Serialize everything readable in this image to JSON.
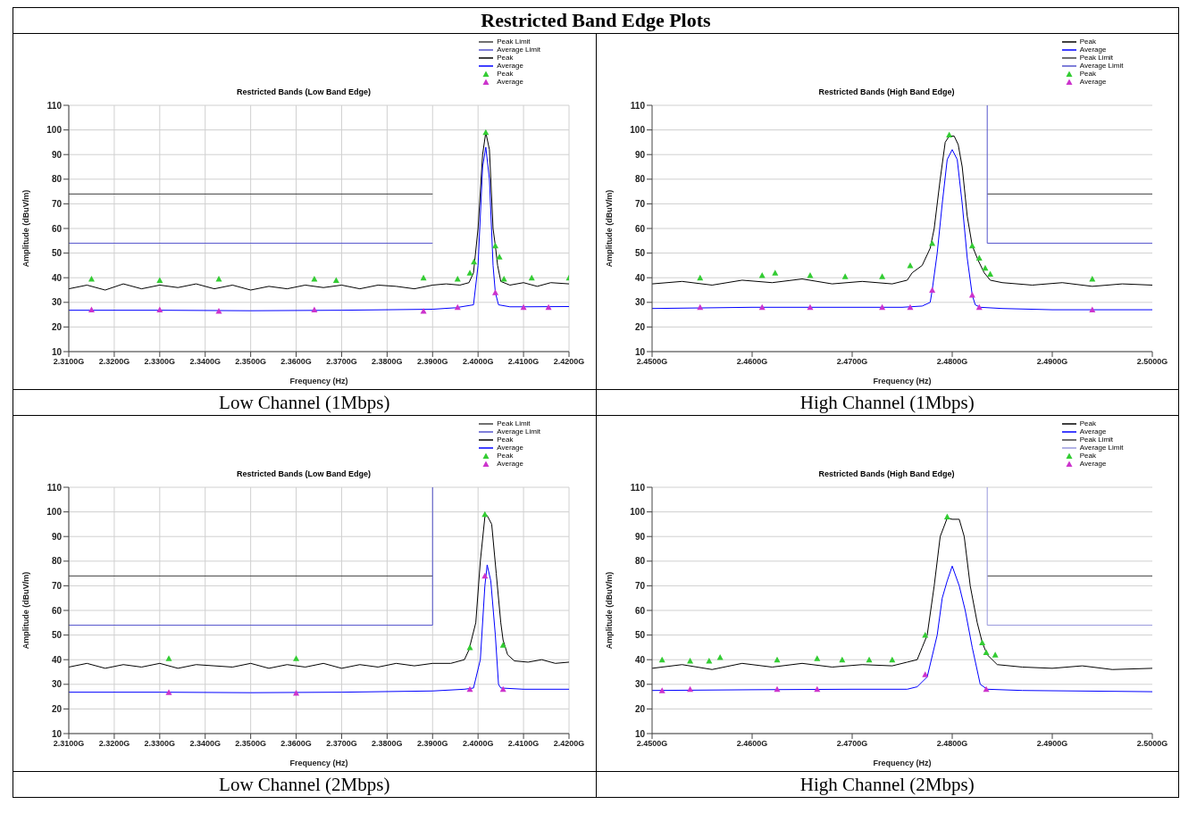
{
  "chart_data": [
    {
      "type": "line",
      "title": "Restricted Bands (Low Band Edge)",
      "xlabel": "Frequency (Hz)",
      "ylabel": "Amplitude (dBuV/m)",
      "annotations": [
        "Restricted Band Edge Plots",
        "Low Channel (1Mbps)"
      ],
      "grid": true,
      "legend": "top right",
      "xlim": [
        2.31,
        2.42
      ],
      "xticks": [
        {
          "value": 2.31,
          "label": "2.3100G"
        },
        {
          "value": 2.32,
          "label": "2.3200G"
        },
        {
          "value": 2.33,
          "label": "2.3300G"
        },
        {
          "value": 2.34,
          "label": "2.3400G"
        },
        {
          "value": 2.35,
          "label": "2.3500G"
        },
        {
          "value": 2.36,
          "label": "2.3600G"
        },
        {
          "value": 2.37,
          "label": "2.3700G"
        },
        {
          "value": 2.38,
          "label": "2.3800G"
        },
        {
          "value": 2.39,
          "label": "2.3900G"
        },
        {
          "value": 2.4,
          "label": "2.4000G"
        },
        {
          "value": 2.41,
          "label": "2.4100G"
        },
        {
          "value": 2.42,
          "label": "2.4200G"
        }
      ],
      "ylim": [
        10,
        110
      ],
      "yticks": [
        10,
        20,
        30,
        40,
        50,
        60,
        70,
        80,
        90,
        100,
        110
      ],
      "series": [
        {
          "name": "Peak Limit",
          "color": "#404040",
          "x": [
            2.31,
            2.39
          ],
          "values": [
            74,
            74
          ]
        },
        {
          "name": "Average Limit",
          "color": "#5555cc",
          "x": [
            2.31,
            2.39
          ],
          "values": [
            54,
            54
          ]
        },
        {
          "name": "Peak",
          "color": "#000000",
          "x": [
            2.31,
            2.314,
            2.318,
            2.322,
            2.326,
            2.33,
            2.334,
            2.338,
            2.342,
            2.346,
            2.35,
            2.354,
            2.358,
            2.362,
            2.366,
            2.37,
            2.374,
            2.378,
            2.382,
            2.386,
            2.39,
            2.393,
            2.396,
            2.398,
            2.399,
            2.4,
            2.401,
            2.4017,
            2.4025,
            2.4033,
            2.4038,
            2.4043,
            2.405,
            2.407,
            2.41,
            2.413,
            2.416,
            2.42
          ],
          "values": [
            35.5,
            37,
            35,
            37.5,
            35.5,
            37,
            36,
            37.5,
            35.5,
            37,
            35,
            36.5,
            35.5,
            37,
            36,
            37,
            35.5,
            37,
            36.5,
            35.5,
            37,
            37.5,
            37,
            38,
            42,
            60,
            90,
            99,
            92,
            60,
            53,
            45,
            38.5,
            37,
            38,
            36.5,
            38,
            37.5
          ]
        },
        {
          "name": "Average",
          "color": "#0000ff",
          "x": [
            2.31,
            2.33,
            2.35,
            2.37,
            2.39,
            2.395,
            2.399,
            2.4,
            2.401,
            2.4017,
            2.4025,
            2.4033,
            2.4038,
            2.4045,
            2.407,
            2.41,
            2.42
          ],
          "values": [
            26.8,
            26.8,
            26.6,
            26.8,
            27.2,
            27.8,
            29,
            45,
            85,
            93,
            80,
            45,
            34,
            29,
            28.2,
            28.2,
            28.3
          ]
        },
        {
          "name": "Peak",
          "type": "scatter",
          "marker": "triangle",
          "color": "#33cc33",
          "x": [
            2.315,
            2.33,
            2.343,
            2.364,
            2.3688,
            2.388,
            2.3955,
            2.3982,
            2.3991,
            2.4017,
            2.4038,
            2.4047,
            2.4057,
            2.4118,
            2.42
          ],
          "values": [
            39.5,
            39,
            39.5,
            39.5,
            39,
            40,
            39.5,
            42,
            46.5,
            99,
            53,
            48.5,
            39.5,
            40,
            40
          ]
        },
        {
          "name": "Average",
          "type": "scatter",
          "marker": "triangle",
          "color": "#cc33cc",
          "x": [
            2.315,
            2.33,
            2.343,
            2.364,
            2.388,
            2.3955,
            2.4038,
            2.41,
            2.4155
          ],
          "values": [
            27,
            27,
            26.5,
            27,
            26.5,
            28,
            34,
            28,
            28
          ]
        }
      ]
    },
    {
      "type": "line",
      "title": "Restricted Bands  (High Band Edge)",
      "xlabel": "Frequency (Hz)",
      "ylabel": "Amplitude (dBuV/m)",
      "annotations": [
        "High Channel (1Mbps)"
      ],
      "grid": "y",
      "legend": "top right",
      "xlim": [
        2.45,
        2.5
      ],
      "xticks": [
        {
          "value": 2.45,
          "label": "2.4500G"
        },
        {
          "value": 2.46,
          "label": "2.4600G"
        },
        {
          "value": 2.47,
          "label": "2.4700G"
        },
        {
          "value": 2.48,
          "label": "2.4800G"
        },
        {
          "value": 2.49,
          "label": "2.4900G"
        },
        {
          "value": 2.5,
          "label": "2.5000G"
        }
      ],
      "ylim": [
        10,
        110
      ],
      "yticks": [
        10,
        20,
        30,
        40,
        50,
        60,
        70,
        80,
        90,
        100,
        110
      ],
      "series": [
        {
          "name": "Peak",
          "color": "#000000",
          "x": [
            2.45,
            2.453,
            2.456,
            2.459,
            2.462,
            2.465,
            2.468,
            2.471,
            2.474,
            2.4755,
            2.476,
            2.477,
            2.4778,
            2.4782,
            2.4788,
            2.4793,
            2.4797,
            2.4802,
            2.4806,
            2.481,
            2.4815,
            2.482,
            2.4826,
            2.4832,
            2.4838,
            2.485,
            2.488,
            2.491,
            2.494,
            2.497,
            2.5
          ],
          "values": [
            37.5,
            38.5,
            37,
            39,
            38,
            39.5,
            37.5,
            38.5,
            37.5,
            39,
            42,
            45,
            52,
            60,
            80,
            95,
            97.5,
            97.5,
            94,
            85,
            65,
            53,
            47,
            42,
            39,
            38,
            37,
            38,
            36.5,
            37.5,
            37
          ]
        },
        {
          "name": "Average",
          "color": "#0000ff",
          "x": [
            2.45,
            2.46,
            2.47,
            2.475,
            2.477,
            2.4778,
            2.478,
            2.4785,
            2.479,
            2.4795,
            2.48,
            2.4805,
            2.481,
            2.4815,
            2.482,
            2.4823,
            2.4828,
            2.485,
            2.49,
            2.5
          ],
          "values": [
            27.5,
            28,
            28,
            28,
            28.5,
            30,
            35,
            50,
            70,
            88,
            92,
            88,
            70,
            48,
            33,
            29,
            28,
            27.5,
            27,
            27
          ]
        },
        {
          "name": "Peak Limit",
          "color": "#404040",
          "x": [
            2.4835,
            2.5
          ],
          "values": [
            74,
            74
          ]
        },
        {
          "name": "Average Limit",
          "color": "#5555cc",
          "x": [
            2.4835,
            2.4835,
            2.5
          ],
          "values": [
            110,
            54,
            54
          ]
        },
        {
          "name": "Peak",
          "type": "scatter",
          "marker": "triangle",
          "color": "#33cc33",
          "x": [
            2.4548,
            2.461,
            2.4623,
            2.4658,
            2.4693,
            2.473,
            2.4758,
            2.478,
            2.4797,
            2.482,
            2.4827,
            2.4833,
            2.4838,
            2.494
          ],
          "values": [
            40,
            41,
            42,
            41,
            40.5,
            40.5,
            45,
            54,
            98,
            53,
            48,
            44,
            41.5,
            39.5
          ]
        },
        {
          "name": "Average",
          "type": "scatter",
          "marker": "triangle",
          "color": "#cc33cc",
          "x": [
            2.4548,
            2.461,
            2.4658,
            2.473,
            2.4758,
            2.478,
            2.482,
            2.4827,
            2.494
          ],
          "values": [
            28,
            28,
            28,
            28,
            28,
            35,
            33,
            28,
            27
          ]
        }
      ]
    },
    {
      "type": "line",
      "title": "Restricted Bands (Low Band Edge)",
      "xlabel": "Frequency (Hz)",
      "ylabel": "Amplitude (dBuV/m)",
      "annotations": [
        "Low Channel (2Mbps)"
      ],
      "grid": true,
      "legend": "top right",
      "xlim": [
        2.31,
        2.42
      ],
      "xticks": [
        {
          "value": 2.31,
          "label": "2.3100G"
        },
        {
          "value": 2.32,
          "label": "2.3200G"
        },
        {
          "value": 2.33,
          "label": "2.3300G"
        },
        {
          "value": 2.34,
          "label": "2.3400G"
        },
        {
          "value": 2.35,
          "label": "2.3500G"
        },
        {
          "value": 2.36,
          "label": "2.3600G"
        },
        {
          "value": 2.37,
          "label": "2.3700G"
        },
        {
          "value": 2.38,
          "label": "2.3800G"
        },
        {
          "value": 2.39,
          "label": "2.3900G"
        },
        {
          "value": 2.4,
          "label": "2.4000G"
        },
        {
          "value": 2.41,
          "label": "2.4100G"
        },
        {
          "value": 2.42,
          "label": "2.4200G"
        }
      ],
      "ylim": [
        10,
        110
      ],
      "yticks": [
        10,
        20,
        30,
        40,
        50,
        60,
        70,
        80,
        90,
        100,
        110
      ],
      "series": [
        {
          "name": "Peak Limit",
          "color": "#404040",
          "x": [
            2.31,
            2.39
          ],
          "values": [
            74,
            74
          ]
        },
        {
          "name": "Average Limit",
          "color": "#5555cc",
          "x": [
            2.31,
            2.39,
            2.39
          ],
          "values": [
            54,
            54,
            110
          ]
        },
        {
          "name": "Peak",
          "color": "#000000",
          "x": [
            2.31,
            2.314,
            2.318,
            2.322,
            2.326,
            2.33,
            2.334,
            2.338,
            2.342,
            2.346,
            2.35,
            2.354,
            2.358,
            2.362,
            2.366,
            2.37,
            2.374,
            2.378,
            2.382,
            2.386,
            2.39,
            2.394,
            2.397,
            2.398,
            2.3995,
            2.4005,
            2.4015,
            2.402,
            2.403,
            2.404,
            2.405,
            2.4055,
            2.4065,
            2.408,
            2.411,
            2.414,
            2.417,
            2.42
          ],
          "values": [
            37,
            38.5,
            36.5,
            38,
            37,
            38.5,
            36.5,
            38,
            37.5,
            37,
            38.5,
            36.5,
            38,
            37,
            38.5,
            36.5,
            38,
            37,
            38.5,
            37.5,
            38.5,
            38.5,
            40,
            44,
            55,
            80,
            98,
            98.5,
            95,
            75,
            55,
            48,
            42,
            39.5,
            39,
            40,
            38.5,
            39
          ]
        },
        {
          "name": "Average",
          "color": "#0000ff",
          "x": [
            2.31,
            2.33,
            2.35,
            2.37,
            2.39,
            2.397,
            2.399,
            2.4005,
            2.4015,
            2.402,
            2.4028,
            2.4038,
            2.4045,
            2.405,
            2.41,
            2.42
          ],
          "values": [
            26.8,
            26.8,
            26.6,
            26.8,
            27.3,
            28,
            28.5,
            40,
            70,
            78.5,
            72,
            50,
            30,
            28.5,
            28,
            28
          ]
        },
        {
          "name": "Peak",
          "type": "scatter",
          "marker": "triangle",
          "color": "#33cc33",
          "x": [
            2.332,
            2.36,
            2.3982,
            2.4015,
            2.4055
          ],
          "values": [
            40.5,
            40.5,
            45,
            99,
            46
          ]
        },
        {
          "name": "Average",
          "type": "scatter",
          "marker": "triangle",
          "color": "#cc33cc",
          "x": [
            2.332,
            2.36,
            2.3982,
            2.4015,
            2.4055
          ],
          "values": [
            26.8,
            26.5,
            28,
            74,
            28
          ]
        }
      ]
    },
    {
      "type": "line",
      "title": "Restricted Bands  (High Band Edge)",
      "xlabel": "Frequency (Hz)",
      "ylabel": "Amplitude (dBuV/m)",
      "annotations": [
        "High Channel (2Mbps)"
      ],
      "grid": "y",
      "legend": "top right",
      "xlim": [
        2.45,
        2.5
      ],
      "xticks": [
        {
          "value": 2.45,
          "label": "2.4500G"
        },
        {
          "value": 2.46,
          "label": "2.4600G"
        },
        {
          "value": 2.47,
          "label": "2.4700G"
        },
        {
          "value": 2.48,
          "label": "2.4800G"
        },
        {
          "value": 2.49,
          "label": "2.4900G"
        },
        {
          "value": 2.5,
          "label": "2.5000G"
        }
      ],
      "ylim": [
        10,
        110
      ],
      "yticks": [
        10,
        20,
        30,
        40,
        50,
        60,
        70,
        80,
        90,
        100,
        110
      ],
      "series": [
        {
          "name": "Peak",
          "color": "#000000",
          "x": [
            2.45,
            2.453,
            2.456,
            2.459,
            2.462,
            2.465,
            2.468,
            2.471,
            2.474,
            2.4755,
            2.4765,
            2.477,
            2.4775,
            2.4782,
            2.4788,
            2.4795,
            2.48,
            2.4807,
            2.4812,
            2.4818,
            2.4825,
            2.483,
            2.4835,
            2.4845,
            2.487,
            2.49,
            2.493,
            2.496,
            2.5
          ],
          "values": [
            36.5,
            38,
            36,
            38.5,
            37,
            38.5,
            37,
            38,
            37.5,
            39,
            40,
            45,
            50,
            70,
            90,
            97.5,
            97,
            97,
            90,
            70,
            55,
            47,
            42,
            38,
            37,
            36.5,
            37.5,
            36,
            36.5
          ]
        },
        {
          "name": "Average",
          "color": "#0000ff",
          "x": [
            2.45,
            2.46,
            2.47,
            2.4755,
            2.4765,
            2.4775,
            2.4785,
            2.479,
            2.4795,
            2.48,
            2.4807,
            2.4813,
            2.482,
            2.4828,
            2.4835,
            2.487,
            2.5
          ],
          "values": [
            27.5,
            27.8,
            28,
            28,
            29,
            33,
            50,
            65,
            72,
            78,
            70,
            60,
            45,
            30,
            28,
            27.5,
            27
          ]
        },
        {
          "name": "Peak Limit",
          "color": "#404040",
          "x": [
            2.4835,
            2.5
          ],
          "values": [
            74,
            74
          ]
        },
        {
          "name": "Average Limit",
          "color": "#9999dd",
          "x": [
            2.4835,
            2.4835,
            2.5
          ],
          "values": [
            110,
            54,
            54
          ]
        },
        {
          "name": "Peak",
          "type": "scatter",
          "marker": "triangle",
          "color": "#33cc33",
          "x": [
            2.451,
            2.4538,
            2.4557,
            2.4568,
            2.4625,
            2.4665,
            2.469,
            2.4717,
            2.474,
            2.4773,
            2.4795,
            2.483,
            2.4834,
            2.4843
          ],
          "values": [
            40,
            39.5,
            39.5,
            41,
            40,
            40.5,
            40,
            40,
            40,
            50,
            98,
            47,
            43,
            42
          ]
        },
        {
          "name": "Average",
          "type": "scatter",
          "marker": "triangle",
          "color": "#cc33cc",
          "x": [
            2.451,
            2.4538,
            2.4625,
            2.4665,
            2.4773,
            2.4834
          ],
          "values": [
            27.5,
            28,
            28,
            28,
            34,
            28
          ]
        }
      ]
    }
  ]
}
